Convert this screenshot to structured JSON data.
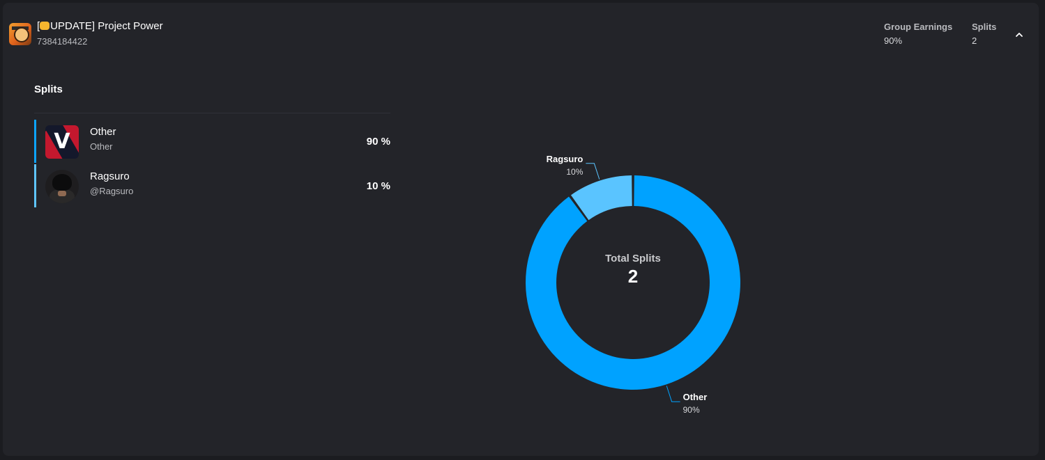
{
  "game": {
    "title_prefix": "[",
    "title_main": "UPDATE] Project Power",
    "id": "7384184422",
    "fist_icon": "oncoming-fist-emoji"
  },
  "header": {
    "group_earnings_label": "Group Earnings",
    "group_earnings_value": "90%",
    "splits_label": "Splits",
    "splits_value": "2"
  },
  "splits": {
    "heading": "Splits",
    "rows": [
      {
        "name": "Other",
        "subtitle": "Other",
        "percent": "90 %",
        "bar_color": "#0ca4ff"
      },
      {
        "name": "Ragsuro",
        "subtitle": "@Ragsuro",
        "percent": "10 %",
        "bar_color": "#5ec5ff"
      }
    ]
  },
  "chart_data": {
    "type": "pie",
    "center_label": "Total Splits",
    "center_value": "2",
    "slices": [
      {
        "label": "Other",
        "value": 90,
        "value_label": "90%",
        "color": "#00a2ff"
      },
      {
        "label": "Ragsuro",
        "value": 10,
        "value_label": "10%",
        "color": "#5ac4ff"
      }
    ]
  },
  "colors": {
    "background": "#1b1c20",
    "card": "#232429",
    "accent": "#00a2ff"
  }
}
